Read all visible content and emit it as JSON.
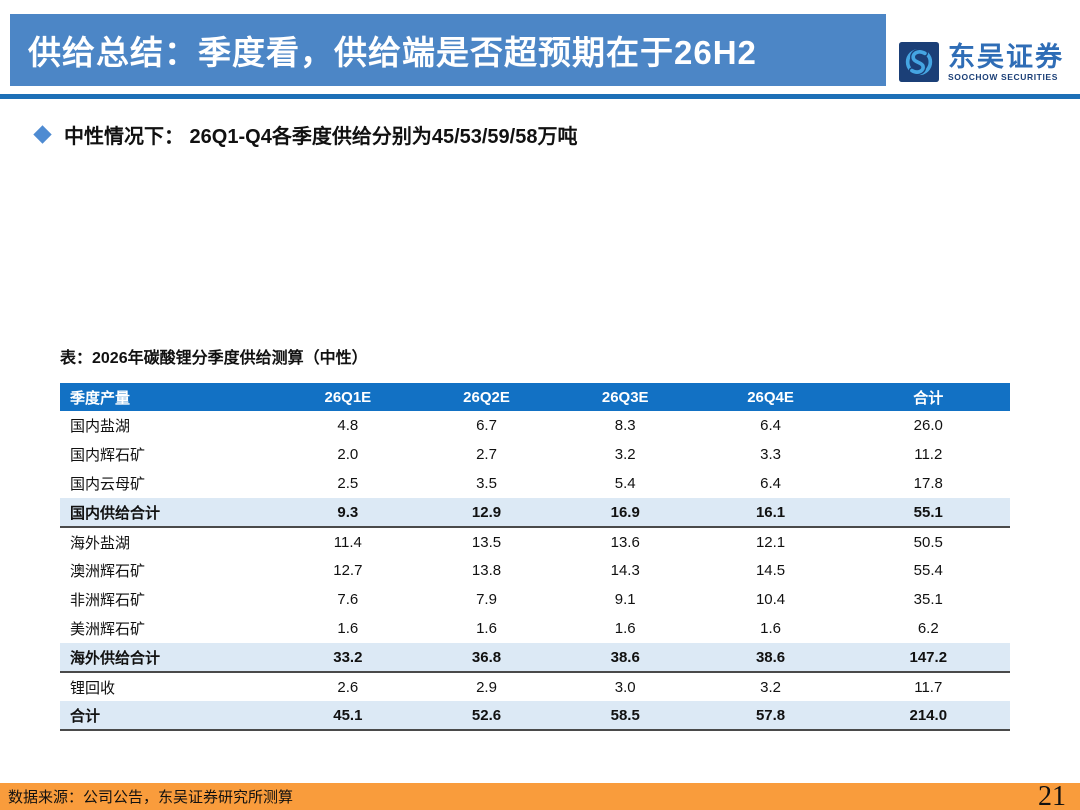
{
  "header": {
    "title": "供给总结：季度看，供给端是否超预期在于26H2",
    "logo_cn": "东吴证券",
    "logo_en": "SOOCHOW SECURITIES"
  },
  "bullet": {
    "text": "中性情况下： 26Q1-Q4各季度供给分别为45/53/59/58万吨"
  },
  "table": {
    "title": "表：2026年碳酸锂分季度供给测算（中性）",
    "columns": [
      "季度产量",
      "26Q1E",
      "26Q2E",
      "26Q3E",
      "26Q4E",
      "合计"
    ],
    "rows": [
      {
        "label": "国内盐湖",
        "values": [
          "4.8",
          "6.7",
          "8.3",
          "6.4",
          "26.0"
        ],
        "emphasis": false
      },
      {
        "label": "国内辉石矿",
        "values": [
          "2.0",
          "2.7",
          "3.2",
          "3.3",
          "11.2"
        ],
        "emphasis": false
      },
      {
        "label": "国内云母矿",
        "values": [
          "2.5",
          "3.5",
          "5.4",
          "6.4",
          "17.8"
        ],
        "emphasis": false
      },
      {
        "label": "国内供给合计",
        "values": [
          "9.3",
          "12.9",
          "16.9",
          "16.1",
          "55.1"
        ],
        "emphasis": true
      },
      {
        "label": "海外盐湖",
        "values": [
          "11.4",
          "13.5",
          "13.6",
          "12.1",
          "50.5"
        ],
        "emphasis": false
      },
      {
        "label": "澳洲辉石矿",
        "values": [
          "12.7",
          "13.8",
          "14.3",
          "14.5",
          "55.4"
        ],
        "emphasis": false
      },
      {
        "label": "非洲辉石矿",
        "values": [
          "7.6",
          "7.9",
          "9.1",
          "10.4",
          "35.1"
        ],
        "emphasis": false
      },
      {
        "label": "美洲辉石矿",
        "values": [
          "1.6",
          "1.6",
          "1.6",
          "1.6",
          "6.2"
        ],
        "emphasis": false
      },
      {
        "label": "海外供给合计",
        "values": [
          "33.2",
          "36.8",
          "38.6",
          "38.6",
          "147.2"
        ],
        "emphasis": true
      },
      {
        "label": "锂回收",
        "values": [
          "2.6",
          "2.9",
          "3.0",
          "3.2",
          "11.7"
        ],
        "emphasis": false
      },
      {
        "label": "合计",
        "values": [
          "45.1",
          "52.6",
          "58.5",
          "57.8",
          "214.0"
        ],
        "emphasis": true
      }
    ]
  },
  "footer": {
    "source": "数据来源：公司公告，东吴证券研究所测算",
    "page": "21"
  },
  "colors": {
    "banner_blue": "#4c86c6",
    "divider_blue": "#1d70b7",
    "table_header_blue": "#1271c4",
    "subtotal_row_blue": "#dce9f5",
    "footer_orange": "#f99c3c",
    "bullet_diamond_blue": "#4e8bd2",
    "logo_navy": "#1b3f77",
    "logo_light_blue": "#45a5e2"
  }
}
